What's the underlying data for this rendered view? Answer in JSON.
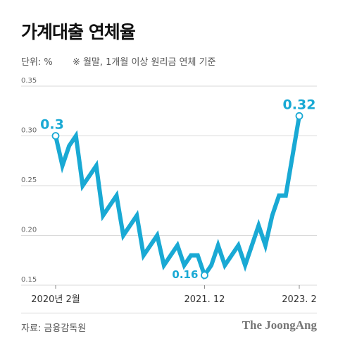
{
  "header": {
    "title": "가계대출 연체율",
    "unit_label": "단위: %",
    "note": "※ 월말, 1개월 이상 원리금 연체 기준"
  },
  "footer": {
    "source": "자료: 금융감독원",
    "logo": "The JoongAng"
  },
  "colors": {
    "line": "#19a9d4",
    "callout": "#19a9d4",
    "grid": "#d9d9d9"
  },
  "chart_data": {
    "type": "line",
    "title": "가계대출 연체율",
    "xlabel": "",
    "ylabel": "",
    "ylim": [
      0.15,
      0.35
    ],
    "yticks": [
      0.35,
      0.3,
      0.25,
      0.2,
      0.15
    ],
    "ytick_labels": [
      "0.35",
      "0.30",
      "0.25",
      "0.20",
      "0.15"
    ],
    "xtick_labels": [
      {
        "index": 0,
        "label": "2020년 2월"
      },
      {
        "index": 22,
        "label": "2021. 12"
      },
      {
        "index": 36,
        "label": "2023. 2"
      }
    ],
    "grid": true,
    "x": [
      "2020-02",
      "2020-03",
      "2020-04",
      "2020-05",
      "2020-06",
      "2020-07",
      "2020-08",
      "2020-09",
      "2020-10",
      "2020-11",
      "2020-12",
      "2021-01",
      "2021-02",
      "2021-03",
      "2021-04",
      "2021-05",
      "2021-06",
      "2021-07",
      "2021-08",
      "2021-09",
      "2021-10",
      "2021-11",
      "2021-12",
      "2022-01",
      "2022-02",
      "2022-03",
      "2022-04",
      "2022-05",
      "2022-06",
      "2022-07",
      "2022-08",
      "2022-09",
      "2022-10",
      "2022-11",
      "2022-12",
      "2023-01",
      "2023-02"
    ],
    "series": [
      {
        "values": [
          0.3,
          0.27,
          0.29,
          0.3,
          0.25,
          0.26,
          0.27,
          0.22,
          0.23,
          0.24,
          0.2,
          0.21,
          0.22,
          0.18,
          0.19,
          0.2,
          0.17,
          0.18,
          0.19,
          0.17,
          0.18,
          0.18,
          0.16,
          0.17,
          0.19,
          0.17,
          0.18,
          0.19,
          0.17,
          0.19,
          0.21,
          0.19,
          0.22,
          0.24,
          0.24,
          0.28,
          0.32
        ]
      }
    ],
    "annotations": [
      {
        "index": 0,
        "text": "0.3"
      },
      {
        "index": 22,
        "text": "0.16"
      },
      {
        "index": 36,
        "text": "0.32"
      }
    ]
  }
}
